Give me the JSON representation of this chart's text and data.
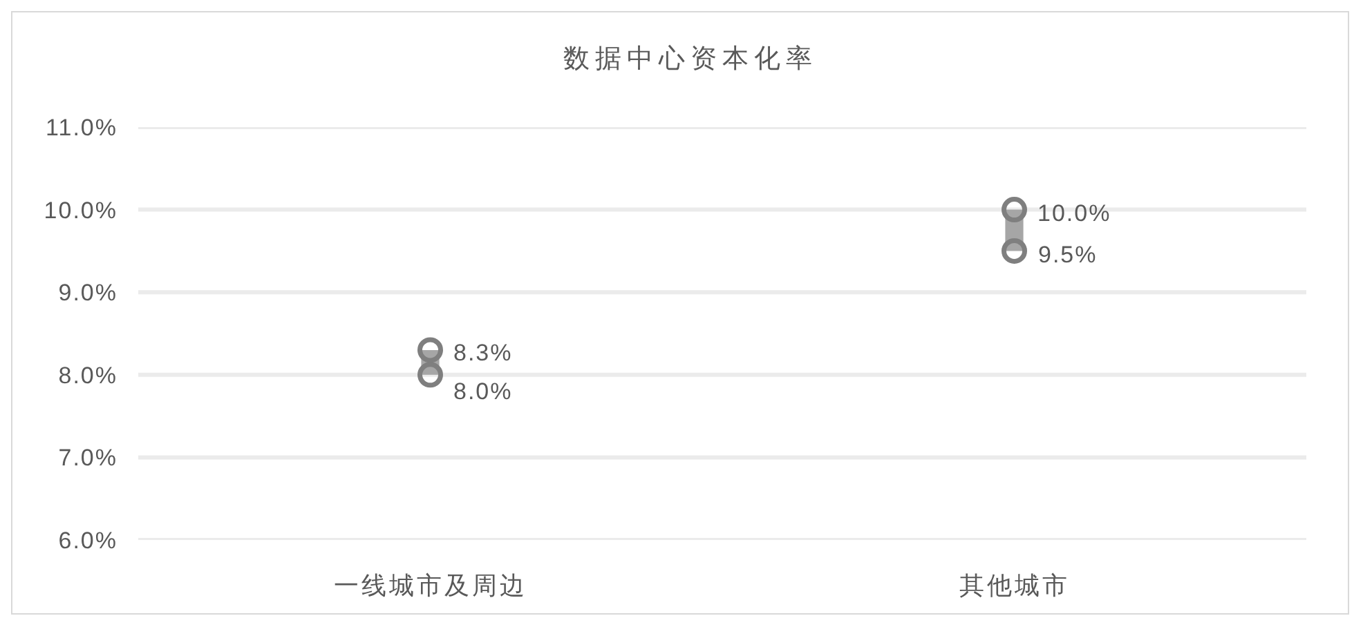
{
  "chart_data": {
    "type": "bar",
    "title": "数据中心资本化率",
    "categories": [
      "一线城市及周边",
      "其他城市"
    ],
    "series": [
      {
        "color": "#a6a6a6",
        "base": [
          8.0,
          9.5
        ],
        "values": [
          0.3,
          0.5
        ]
      },
      {
        "type": "scatter",
        "color": "#7f7f7f",
        "values": [
          8.3,
          10.0
        ],
        "value_labels": [
          "8.3%",
          "10.0%"
        ]
      },
      {
        "type": "scatter",
        "color": "#7f7f7f",
        "values": [
          8.0,
          9.5
        ],
        "value_labels": [
          "8.0%",
          "9.5%"
        ]
      }
    ],
    "ylim": [
      6,
      11
    ],
    "yticks": [
      {
        "value": 6,
        "label": "6.0%"
      },
      {
        "value": 7,
        "label": "7.0%"
      },
      {
        "value": 8,
        "label": "8.0%"
      },
      {
        "value": 9,
        "label": "9.0%"
      },
      {
        "value": 10,
        "label": "10.0%"
      },
      {
        "value": 11,
        "label": "11.0%"
      }
    ],
    "grid": "y",
    "marker": "circle"
  }
}
